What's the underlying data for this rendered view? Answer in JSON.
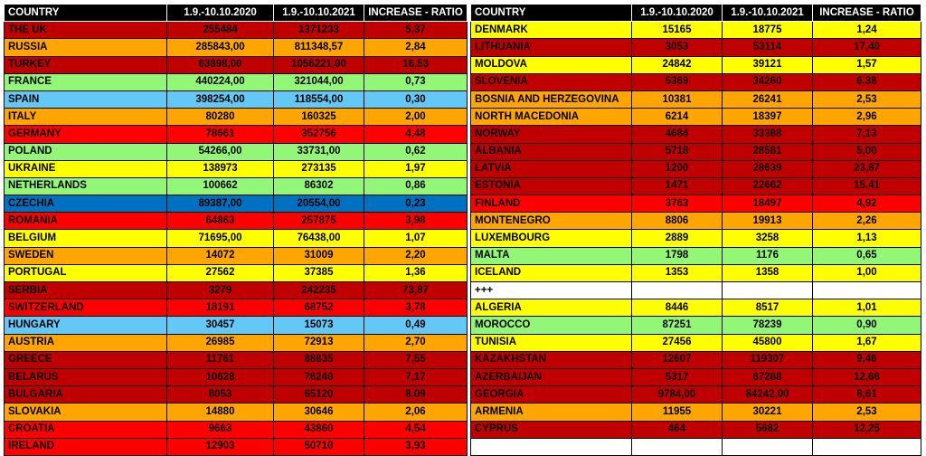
{
  "header": {
    "country": "COUNTRY",
    "period_2020": "1.9.-10.10.2020",
    "period_2021": "1.9.-10.10.2021",
    "ratio": "INCREASE - RATIO"
  },
  "colors": {
    "dark_red": "#c00000",
    "red": "#ff0000",
    "orange": "#ffa500",
    "yellow": "#ffff00",
    "light_green": "#92f777",
    "light_blue": "#63c8f5",
    "blue": "#0070c0",
    "white": "#ffffff"
  },
  "left_rows": [
    {
      "country": "THE UK",
      "v2020": "255484",
      "v2021": "1371233",
      "ratio": "5,37",
      "color": "dark_red"
    },
    {
      "country": "RUSSIA",
      "v2020": "285843,00",
      "v2021": "811348,57",
      "ratio": "2,84",
      "color": "orange"
    },
    {
      "country": "TURKEY",
      "v2020": "63898,00",
      "v2021": "1056221,00",
      "ratio": "16,53",
      "color": "dark_red"
    },
    {
      "country": "FRANCE",
      "v2020": "440224,00",
      "v2021": "321044,00",
      "ratio": "0,73",
      "color": "light_green"
    },
    {
      "country": "SPAIN",
      "v2020": "398254,00",
      "v2021": "118554,00",
      "ratio": "0,30",
      "color": "light_blue"
    },
    {
      "country": "ITALY",
      "v2020": "80280",
      "v2021": "160325",
      "ratio": "2,00",
      "color": "orange"
    },
    {
      "country": "GERMANY",
      "v2020": "78661",
      "v2021": "352756",
      "ratio": "4,48",
      "color": "red"
    },
    {
      "country": "POLAND",
      "v2020": "54266,00",
      "v2021": "33731,00",
      "ratio": "0,62",
      "color": "light_green"
    },
    {
      "country": "UKRAINE",
      "v2020": "138973",
      "v2021": "273135",
      "ratio": "1,97",
      "color": "yellow"
    },
    {
      "country": "NETHERLANDS",
      "v2020": "100662",
      "v2021": "86302",
      "ratio": "0,86",
      "color": "light_green"
    },
    {
      "country": "CZECHIA",
      "v2020": "89387,00",
      "v2021": "20554,00",
      "ratio": "0,23",
      "color": "blue"
    },
    {
      "country": "ROMANIA",
      "v2020": "64863",
      "v2021": "257875",
      "ratio": "3,98",
      "color": "red"
    },
    {
      "country": "BELGIUM",
      "v2020": "71695,00",
      "v2021": "76438,00",
      "ratio": "1,07",
      "color": "yellow"
    },
    {
      "country": "SWEDEN",
      "v2020": "14072",
      "v2021": "31009",
      "ratio": "2,20",
      "color": "orange"
    },
    {
      "country": "PORTUGAL",
      "v2020": "27562",
      "v2021": "37385",
      "ratio": "1,36",
      "color": "yellow"
    },
    {
      "country": "SERBIA",
      "v2020": "3279",
      "v2021": "242235",
      "ratio": "73,87",
      "color": "dark_red"
    },
    {
      "country": "SWITZERLAND",
      "v2020": "18191",
      "v2021": "68752",
      "ratio": "3,78",
      "color": "red"
    },
    {
      "country": "HUNGARY",
      "v2020": "30457",
      "v2021": "15073",
      "ratio": "0,49",
      "color": "light_blue"
    },
    {
      "country": "AUSTRIA",
      "v2020": "26985",
      "v2021": "72913",
      "ratio": "2,70",
      "color": "orange"
    },
    {
      "country": "GREECE",
      "v2020": "11761",
      "v2021": "88835",
      "ratio": "7,55",
      "color": "dark_red"
    },
    {
      "country": "BELARUS",
      "v2020": "10628",
      "v2021": "76240",
      "ratio": "7,17",
      "color": "dark_red"
    },
    {
      "country": "BULGARIA",
      "v2020": "8053",
      "v2021": "65120",
      "ratio": "8,09",
      "color": "dark_red"
    },
    {
      "country": "SLOVAKIA",
      "v2020": "14880",
      "v2021": "30646",
      "ratio": "2,06",
      "color": "orange"
    },
    {
      "country": "CROATIA",
      "v2020": "9663",
      "v2021": "43860",
      "ratio": "4,54",
      "color": "red"
    },
    {
      "country": "IRELAND",
      "v2020": "12903",
      "v2021": "50710",
      "ratio": "3,93",
      "color": "red"
    }
  ],
  "right_rows": [
    {
      "country": "DENMARK",
      "v2020": "15165",
      "v2021": "18775",
      "ratio": "1,24",
      "color": "yellow"
    },
    {
      "country": "LITHUANIA",
      "v2020": "3053",
      "v2021": "53114",
      "ratio": "17,40",
      "color": "dark_red"
    },
    {
      "country": "MOLDOVA",
      "v2020": "24842",
      "v2021": "39121",
      "ratio": "1,57",
      "color": "yellow"
    },
    {
      "country": "SLOVENIA",
      "v2020": "5369",
      "v2021": "34260",
      "ratio": "6,38",
      "color": "dark_red"
    },
    {
      "country": "BOSNIA AND HERZEGOVINA",
      "v2020": "10381",
      "v2021": "26241",
      "ratio": "2,53",
      "color": "orange"
    },
    {
      "country": "NORTH MACEDONIA",
      "v2020": "6214",
      "v2021": "18397",
      "ratio": "2,96",
      "color": "orange"
    },
    {
      "country": "NORWAY",
      "v2020": "4684",
      "v2021": "33388",
      "ratio": "7,13",
      "color": "dark_red"
    },
    {
      "country": "ALBANIA",
      "v2020": "5718",
      "v2021": "28581",
      "ratio": "5,00",
      "color": "dark_red"
    },
    {
      "country": "LATVIA",
      "v2020": "1200",
      "v2021": "28639",
      "ratio": "23,87",
      "color": "dark_red"
    },
    {
      "country": "ESTONIA",
      "v2020": "1471",
      "v2021": "22662",
      "ratio": "15,41",
      "color": "dark_red"
    },
    {
      "country": "FINLAND",
      "v2020": "3763",
      "v2021": "18497",
      "ratio": "4,92",
      "color": "red"
    },
    {
      "country": "MONTENEGRO",
      "v2020": "8806",
      "v2021": "19913",
      "ratio": "2,26",
      "color": "orange"
    },
    {
      "country": "LUXEMBOURG",
      "v2020": "2889",
      "v2021": "3258",
      "ratio": "1,13",
      "color": "yellow"
    },
    {
      "country": "MALTA",
      "v2020": "1798",
      "v2021": "1176",
      "ratio": "0,65",
      "color": "light_green"
    },
    {
      "country": "ICELAND",
      "v2020": "1353",
      "v2021": "1358",
      "ratio": "1,00",
      "color": "yellow"
    },
    {
      "country": "+++",
      "v2020": "",
      "v2021": "",
      "ratio": "",
      "color": "white"
    },
    {
      "country": "ALGERIA",
      "v2020": "8446",
      "v2021": "8517",
      "ratio": "1,01",
      "color": "yellow"
    },
    {
      "country": "MOROCCO",
      "v2020": "87251",
      "v2021": "78239",
      "ratio": "0,90",
      "color": "light_green"
    },
    {
      "country": "TUNISIA",
      "v2020": "27456",
      "v2021": "45800",
      "ratio": "1,67",
      "color": "yellow"
    },
    {
      "country": "KAZAKHSTAN",
      "v2020": "12607",
      "v2021": "119307",
      "ratio": "9,46",
      "color": "dark_red"
    },
    {
      "country": "AZERBAIJAN",
      "v2020": "5317",
      "v2021": "67288",
      "ratio": "12,66",
      "color": "dark_red"
    },
    {
      "country": "GEORGIA",
      "v2020": "9784,00",
      "v2021": "84242,00",
      "ratio": "8,61",
      "color": "dark_red"
    },
    {
      "country": "ARMENIA",
      "v2020": "11955",
      "v2021": "30221",
      "ratio": "2,53",
      "color": "orange"
    },
    {
      "country": "CYPRUS",
      "v2020": "464",
      "v2021": "5682",
      "ratio": "12,25",
      "color": "dark_red"
    },
    {
      "country": "",
      "v2020": "",
      "v2021": "",
      "ratio": "",
      "color": "white"
    }
  ]
}
